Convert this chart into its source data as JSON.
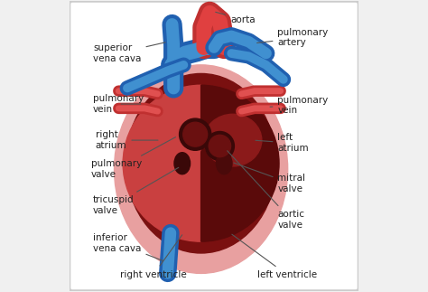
{
  "bg_color": "#f0f0f0",
  "border_color": "#cccccc",
  "heart_outer_color": "#c94040",
  "heart_pink_color": "#e8a0a0",
  "blue_vessel_color": "#2060b0",
  "blue_vessel_light": "#4090d0",
  "red_vessel_color": "#c03030",
  "red_vessel_light": "#e04040",
  "text_color": "#222222",
  "line_color": "#555555",
  "font_size": 7.5,
  "annotations": [
    {
      "text": "aorta",
      "txy": [
        0.556,
        0.937
      ],
      "axy": [
        0.497,
        0.965
      ],
      "ha": "left"
    },
    {
      "text": "pulmonary\nartery",
      "txy": [
        0.72,
        0.875
      ],
      "axy": [
        0.64,
        0.855
      ],
      "ha": "left"
    },
    {
      "text": "pulmonary\nvein",
      "txy": [
        0.72,
        0.64
      ],
      "axy": [
        0.685,
        0.635
      ],
      "ha": "left"
    },
    {
      "text": "left\natrium",
      "txy": [
        0.72,
        0.51
      ],
      "axy": [
        0.635,
        0.52
      ],
      "ha": "left"
    },
    {
      "text": "mitral\nvalve",
      "txy": [
        0.72,
        0.37
      ],
      "axy": [
        0.56,
        0.445
      ],
      "ha": "left"
    },
    {
      "text": "aortic\nvalve",
      "txy": [
        0.72,
        0.245
      ],
      "axy": [
        0.54,
        0.49
      ],
      "ha": "left"
    },
    {
      "text": "left ventricle",
      "txy": [
        0.65,
        0.055
      ],
      "axy": [
        0.555,
        0.2
      ],
      "ha": "left"
    },
    {
      "text": "right ventricle",
      "txy": [
        0.175,
        0.055
      ],
      "axy": [
        0.395,
        0.2
      ],
      "ha": "left"
    },
    {
      "text": "inferior\nvena cava",
      "txy": [
        0.082,
        0.165
      ],
      "axy": [
        0.332,
        0.1
      ],
      "ha": "left"
    },
    {
      "text": "tricuspid\nvalve",
      "txy": [
        0.082,
        0.295
      ],
      "axy": [
        0.385,
        0.43
      ],
      "ha": "left"
    },
    {
      "text": "pulmonary\nvalve",
      "txy": [
        0.075,
        0.42
      ],
      "axy": [
        0.375,
        0.535
      ],
      "ha": "left"
    },
    {
      "text": "right\natrium",
      "txy": [
        0.09,
        0.52
      ],
      "axy": [
        0.315,
        0.52
      ],
      "ha": "left"
    },
    {
      "text": "pulmonary\nvein",
      "txy": [
        0.082,
        0.645
      ],
      "axy": [
        0.255,
        0.645
      ],
      "ha": "left"
    },
    {
      "text": "superior\nvena cava",
      "txy": [
        0.082,
        0.82
      ],
      "axy": [
        0.34,
        0.86
      ],
      "ha": "left"
    }
  ]
}
